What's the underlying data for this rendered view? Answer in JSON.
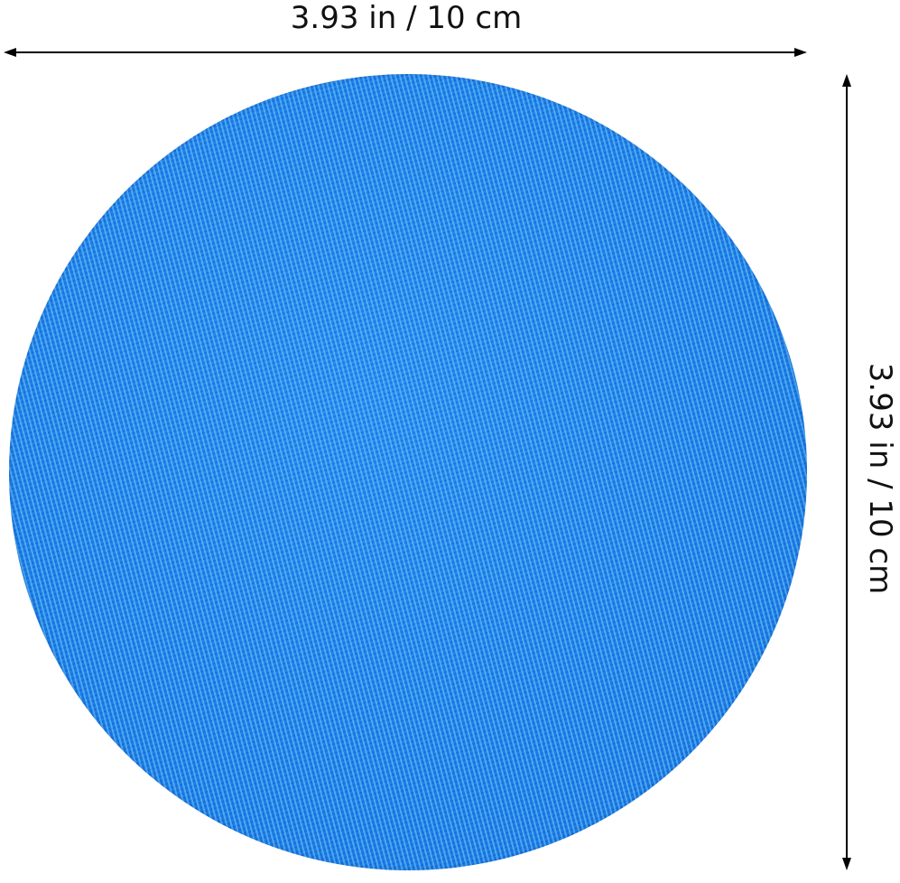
{
  "dimensions": {
    "width_label": "3.93 in / 10 cm",
    "height_label": "3.93 in / 10 cm"
  },
  "product": {
    "shape": "circle",
    "material": "woven fabric",
    "color": "#1f7fe6"
  },
  "colors": {
    "background": "#ffffff",
    "lines": "#000000"
  }
}
